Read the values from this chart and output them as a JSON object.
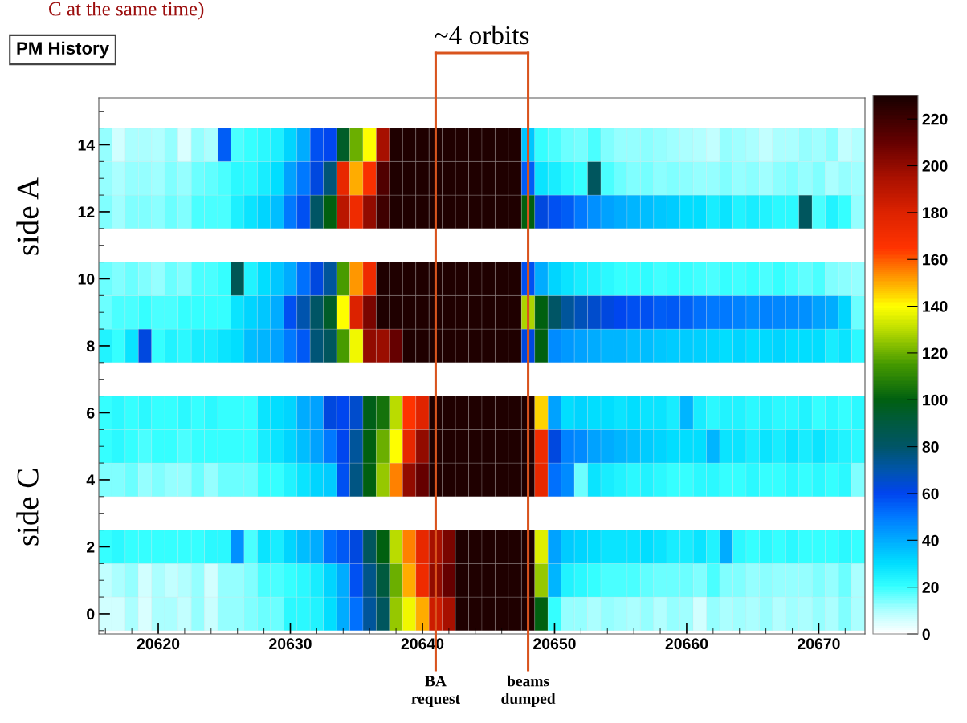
{
  "chart_data": {
    "type": "heatmap",
    "title": "PM History",
    "annotations": [
      "C at the same time)",
      "side A",
      "side C",
      "~4 orbits"
    ],
    "x": [
      20616,
      20617,
      20618,
      20619,
      20620,
      20621,
      20622,
      20623,
      20624,
      20625,
      20626,
      20627,
      20628,
      20629,
      20630,
      20631,
      20632,
      20633,
      20634,
      20635,
      20636,
      20637,
      20638,
      20639,
      20640,
      20641,
      20642,
      20643,
      20644,
      20645,
      20646,
      20647,
      20648,
      20649,
      20650,
      20651,
      20652,
      20653,
      20654,
      20655,
      20656,
      20657,
      20658,
      20659,
      20660,
      20661,
      20662,
      20663,
      20664,
      20665,
      20666,
      20667,
      20668,
      20669,
      20670,
      20671,
      20672,
      20673
    ],
    "xlim": [
      20615.5,
      20673.5
    ],
    "xticks": [
      20620,
      20630,
      20640,
      20650,
      20660,
      20670
    ],
    "y_categories": [
      "14",
      null,
      "12",
      null,
      "10",
      null,
      "8",
      null,
      "6",
      null,
      "4",
      null,
      "2",
      null,
      "0"
    ],
    "cells": [
      [
        12,
        6,
        10,
        10,
        9,
        12,
        5,
        12,
        10,
        55,
        18,
        20,
        22,
        25,
        32,
        40,
        58,
        60,
        95,
        120,
        140,
        195,
        228,
        228,
        228,
        228,
        228,
        228,
        228,
        228,
        228,
        228,
        35,
        20,
        18,
        16,
        15,
        18,
        14,
        12,
        12,
        13,
        12,
        11,
        10,
        9,
        8,
        12,
        11,
        10,
        8,
        10,
        10,
        12,
        11,
        13,
        8,
        9
      ],
      [
        12,
        10,
        12,
        12,
        11,
        14,
        12,
        16,
        17,
        18,
        22,
        22,
        26,
        30,
        42,
        50,
        62,
        78,
        175,
        150,
        168,
        215,
        228,
        228,
        228,
        228,
        228,
        228,
        228,
        228,
        228,
        228,
        55,
        28,
        26,
        22,
        20,
        82,
        18,
        16,
        14,
        15,
        13,
        14,
        13,
        12,
        12,
        14,
        12,
        13,
        11,
        13,
        14,
        12,
        14,
        10,
        12,
        11
      ],
      [
        14,
        11,
        14,
        14,
        13,
        16,
        14,
        18,
        18,
        18,
        25,
        28,
        32,
        36,
        50,
        58,
        80,
        100,
        190,
        172,
        200,
        220,
        228,
        228,
        228,
        228,
        228,
        228,
        228,
        228,
        228,
        228,
        100,
        62,
        58,
        55,
        50,
        45,
        42,
        40,
        38,
        36,
        35,
        34,
        30,
        30,
        26,
        28,
        24,
        26,
        24,
        22,
        22,
        82,
        18,
        24,
        20,
        12
      ],
      [
        0,
        0,
        0,
        0,
        0,
        0,
        0,
        0,
        0,
        0,
        0,
        0,
        0,
        0,
        0,
        0,
        0,
        0,
        0,
        0,
        0,
        0,
        0,
        0,
        0,
        0,
        0,
        0,
        0,
        0,
        0,
        0,
        0,
        0,
        0,
        0,
        0,
        0,
        0,
        0,
        0,
        0,
        0,
        0,
        0,
        0,
        0,
        0,
        0,
        0,
        0,
        0,
        0,
        0,
        0,
        0,
        0,
        0
      ],
      [
        16,
        14,
        16,
        14,
        12,
        16,
        14,
        18,
        18,
        20,
        85,
        24,
        30,
        35,
        40,
        52,
        62,
        72,
        115,
        152,
        172,
        228,
        228,
        228,
        228,
        228,
        228,
        228,
        228,
        228,
        228,
        228,
        58,
        40,
        32,
        28,
        26,
        24,
        22,
        20,
        20,
        21,
        19,
        20,
        20,
        19,
        18,
        20,
        19,
        20,
        18,
        20,
        18,
        17,
        18,
        14,
        13,
        12
      ],
      [
        16,
        18,
        18,
        20,
        18,
        18,
        20,
        20,
        20,
        20,
        28,
        32,
        35,
        40,
        58,
        70,
        80,
        95,
        140,
        180,
        205,
        228,
        228,
        228,
        228,
        228,
        228,
        228,
        228,
        228,
        228,
        228,
        128,
        100,
        80,
        72,
        68,
        65,
        62,
        60,
        58,
        58,
        55,
        56,
        54,
        52,
        50,
        50,
        48,
        46,
        48,
        47,
        46,
        45,
        42,
        40,
        32,
        16
      ],
      [
        24,
        20,
        28,
        62,
        20,
        24,
        22,
        26,
        26,
        28,
        30,
        36,
        38,
        42,
        50,
        56,
        78,
        82,
        115,
        138,
        200,
        198,
        210,
        228,
        228,
        228,
        228,
        228,
        228,
        228,
        228,
        228,
        62,
        100,
        46,
        44,
        42,
        40,
        38,
        38,
        36,
        36,
        35,
        34,
        34,
        33,
        32,
        30,
        32,
        30,
        31,
        32,
        30,
        30,
        30,
        26,
        28,
        22
      ],
      [
        0,
        0,
        0,
        0,
        0,
        0,
        0,
        0,
        0,
        0,
        0,
        0,
        0,
        0,
        0,
        0,
        0,
        0,
        0,
        0,
        0,
        0,
        0,
        0,
        0,
        0,
        0,
        0,
        0,
        0,
        0,
        0,
        0,
        0,
        0,
        0,
        0,
        0,
        0,
        0,
        0,
        0,
        0,
        0,
        0,
        0,
        0,
        0,
        0,
        0,
        0,
        0,
        0,
        0,
        0,
        0,
        0,
        0
      ],
      [
        20,
        22,
        20,
        22,
        20,
        20,
        22,
        20,
        22,
        20,
        20,
        20,
        28,
        30,
        32,
        40,
        42,
        62,
        60,
        65,
        98,
        105,
        130,
        165,
        178,
        228,
        228,
        228,
        228,
        228,
        228,
        228,
        228,
        145,
        42,
        30,
        32,
        30,
        30,
        28,
        30,
        28,
        28,
        26,
        38,
        26,
        22,
        24,
        24,
        22,
        24,
        22,
        22,
        24,
        20,
        22,
        20,
        22
      ],
      [
        20,
        22,
        20,
        18,
        20,
        20,
        18,
        20,
        20,
        20,
        20,
        20,
        26,
        28,
        32,
        36,
        42,
        50,
        60,
        72,
        100,
        120,
        140,
        176,
        200,
        228,
        228,
        228,
        228,
        228,
        228,
        228,
        228,
        172,
        62,
        48,
        46,
        42,
        40,
        38,
        36,
        34,
        32,
        30,
        30,
        30,
        38,
        28,
        28,
        26,
        28,
        26,
        28,
        26,
        28,
        26,
        24,
        22
      ],
      [
        14,
        14,
        16,
        12,
        14,
        12,
        12,
        16,
        12,
        16,
        16,
        16,
        20,
        20,
        24,
        28,
        32,
        34,
        58,
        76,
        100,
        125,
        155,
        200,
        210,
        228,
        228,
        228,
        228,
        228,
        228,
        228,
        228,
        175,
        52,
        46,
        16,
        28,
        26,
        24,
        22,
        24,
        22,
        20,
        20,
        22,
        22,
        20,
        20,
        22,
        20,
        20,
        22,
        20,
        22,
        20,
        22,
        14
      ],
      [
        0,
        0,
        0,
        0,
        0,
        0,
        0,
        0,
        0,
        0,
        0,
        0,
        0,
        0,
        0,
        0,
        0,
        0,
        0,
        0,
        0,
        0,
        0,
        0,
        0,
        0,
        0,
        0,
        0,
        0,
        0,
        0,
        0,
        0,
        0,
        0,
        0,
        0,
        0,
        0,
        0,
        0,
        0,
        0,
        0,
        0,
        0,
        0,
        0,
        0,
        0,
        0,
        0,
        0,
        0,
        0,
        0,
        0
      ],
      [
        20,
        22,
        20,
        20,
        20,
        20,
        20,
        20,
        22,
        22,
        45,
        18,
        28,
        26,
        32,
        36,
        40,
        52,
        56,
        62,
        82,
        100,
        130,
        155,
        175,
        195,
        205,
        228,
        228,
        228,
        228,
        228,
        228,
        135,
        42,
        34,
        32,
        30,
        28,
        28,
        28,
        30,
        28,
        26,
        26,
        28,
        24,
        40,
        22,
        20,
        22,
        20,
        22,
        20,
        20,
        20,
        22,
        20
      ],
      [
        8,
        10,
        12,
        6,
        10,
        8,
        9,
        12,
        6,
        12,
        12,
        14,
        18,
        18,
        20,
        22,
        26,
        32,
        40,
        58,
        75,
        90,
        120,
        150,
        172,
        200,
        210,
        228,
        228,
        228,
        228,
        228,
        228,
        125,
        38,
        24,
        22,
        20,
        18,
        18,
        18,
        17,
        16,
        16,
        16,
        14,
        18,
        14,
        14,
        12,
        13,
        12,
        12,
        12,
        14,
        12,
        16,
        10
      ],
      [
        6,
        6,
        10,
        5,
        10,
        10,
        8,
        12,
        7,
        12,
        12,
        14,
        16,
        16,
        22,
        22,
        24,
        30,
        40,
        52,
        72,
        82,
        125,
        138,
        150,
        185,
        195,
        228,
        228,
        228,
        228,
        228,
        228,
        100,
        20,
        12,
        12,
        10,
        12,
        11,
        10,
        12,
        9,
        12,
        11,
        6,
        12,
        10,
        11,
        10,
        12,
        9,
        11,
        10,
        12,
        10,
        14,
        10
      ]
    ],
    "clim": [
      0,
      230
    ],
    "cticks": [
      0,
      20,
      40,
      60,
      80,
      100,
      120,
      140,
      160,
      180,
      200,
      220
    ],
    "ref_lines": [
      {
        "axis": "x",
        "value": 20641,
        "label": "BA\nrequest",
        "color": "#d9541e"
      },
      {
        "axis": "x",
        "value": 20648,
        "label": "beams\ndumped",
        "color": "#d9541e"
      }
    ]
  }
}
